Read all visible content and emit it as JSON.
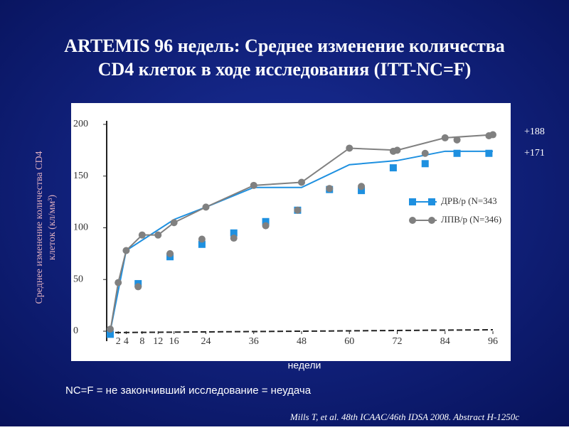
{
  "title": "ARTEMIS 96 недель: Среднее изменение количества CD4 клеток в ходе исследования (ITT-NC=F)",
  "chart_data": {
    "type": "line",
    "ylabel": "Среднее изменение количества CD4 клеток (кл/мм³)",
    "xlabel": "недели",
    "xlim": [
      0,
      96
    ],
    "ylim": [
      0,
      200
    ],
    "xticks": [
      2,
      4,
      8,
      12,
      16,
      24,
      36,
      48,
      60,
      72,
      84,
      96
    ],
    "yticks": [
      0,
      50,
      100,
      150,
      200
    ],
    "series": [
      {
        "name": "ДРВ/р (N=343",
        "color": "#1e90e0",
        "marker": "square",
        "x": [
          0,
          4,
          16,
          24,
          36,
          48,
          60,
          72,
          84,
          96
        ],
        "values": [
          0,
          78,
          108,
          120,
          139,
          139,
          161,
          165,
          174,
          174
        ],
        "marker_x": [
          0,
          7,
          15,
          23,
          31,
          39,
          47,
          55,
          63,
          71,
          79,
          87,
          95
        ],
        "marker_values": [
          -3,
          46,
          72,
          84,
          95,
          106,
          117,
          137,
          136,
          158,
          162,
          172,
          172
        ],
        "end_label": "+171"
      },
      {
        "name": "ЛПВ/р (N=346)",
        "color": "#808080",
        "marker": "circle",
        "x": [
          0,
          2,
          4,
          8,
          12,
          16,
          24,
          36,
          48,
          60,
          72,
          84,
          96
        ],
        "values": [
          0,
          47,
          78,
          93,
          93,
          105,
          120,
          141,
          144,
          177,
          175,
          187,
          190
        ],
        "marker_x": [
          0,
          7,
          15,
          23,
          31,
          39,
          47,
          55,
          63,
          71,
          79,
          87,
          95
        ],
        "marker_values": [
          2,
          43,
          75,
          89,
          90,
          102,
          117,
          138,
          140,
          174,
          172,
          185,
          189
        ],
        "end_label": "+188"
      }
    ]
  },
  "footnote": "NC=F = не закончивший исследование = неудача",
  "citation": "Mills T, et al. 48th ICAAC/46th IDSA 2008. Abstract H-1250c"
}
